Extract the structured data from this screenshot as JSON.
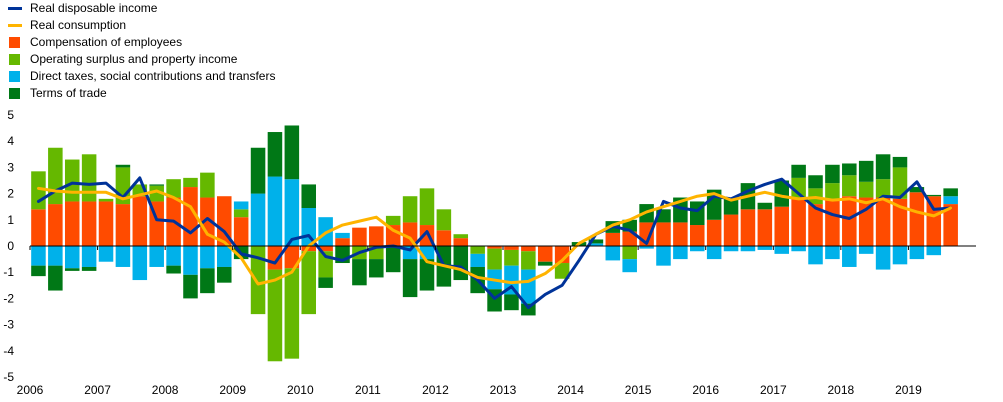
{
  "legend": [
    {
      "label": "Real disposable income",
      "kind": "line",
      "color": "#003399"
    },
    {
      "label": "Real consumption",
      "kind": "line",
      "color": "#ffb400"
    },
    {
      "label": "Compensation of employees",
      "kind": "bar",
      "color": "#ff4b00"
    },
    {
      "label": "Operating surplus and property income",
      "kind": "bar",
      "color": "#65b800"
    },
    {
      "label": "Direct taxes, social contributions and transfers",
      "kind": "bar",
      "color": "#00b1ea"
    },
    {
      "label": "Terms of trade",
      "kind": "bar",
      "color": "#007816"
    }
  ],
  "chart_data": {
    "type": "bar",
    "stacked": true,
    "ylim": [
      -5,
      5
    ],
    "y_ticks": [
      -5,
      -4,
      -3,
      -2,
      -1,
      0,
      1,
      2,
      3,
      4,
      5
    ],
    "x_tick_labels": [
      "2006",
      "2007",
      "2008",
      "2009",
      "2010",
      "2011",
      "2012",
      "2013",
      "2014",
      "2015",
      "2016",
      "2017",
      "2018",
      "2019"
    ],
    "grid": "none",
    "legend_position": "top-left",
    "categories": [
      "2006Q1",
      "2006Q2",
      "2006Q3",
      "2006Q4",
      "2007Q1",
      "2007Q2",
      "2007Q3",
      "2007Q4",
      "2008Q1",
      "2008Q2",
      "2008Q3",
      "2008Q4",
      "2009Q1",
      "2009Q2",
      "2009Q3",
      "2009Q4",
      "2010Q1",
      "2010Q2",
      "2010Q3",
      "2010Q4",
      "2011Q1",
      "2011Q2",
      "2011Q3",
      "2011Q4",
      "2012Q1",
      "2012Q2",
      "2012Q3",
      "2012Q4",
      "2013Q1",
      "2013Q2",
      "2013Q3",
      "2013Q4",
      "2014Q1",
      "2014Q2",
      "2014Q3",
      "2014Q4",
      "2015Q1",
      "2015Q2",
      "2015Q3",
      "2015Q4",
      "2016Q1",
      "2016Q2",
      "2016Q3",
      "2016Q4",
      "2017Q1",
      "2017Q2",
      "2017Q3",
      "2017Q4",
      "2018Q1",
      "2018Q2",
      "2018Q3",
      "2018Q4",
      "2019Q1",
      "2019Q2",
      "2019Q3"
    ],
    "series": [
      {
        "name": "Compensation of employees",
        "kind": "bar",
        "color": "#ff4b00",
        "values": [
          1.4,
          1.6,
          1.7,
          1.7,
          1.7,
          1.6,
          1.9,
          1.7,
          1.85,
          2.25,
          1.85,
          1.9,
          1.1,
          0.0,
          -0.9,
          -0.85,
          -0.2,
          -0.2,
          0.3,
          0.7,
          0.75,
          0.8,
          0.9,
          0.8,
          0.6,
          0.3,
          0.0,
          -0.1,
          -0.15,
          -0.2,
          -0.6,
          -0.65,
          0.0,
          0.0,
          0.5,
          0.55,
          0.9,
          0.9,
          0.9,
          0.8,
          1.0,
          1.2,
          1.4,
          1.4,
          1.5,
          1.8,
          1.6,
          1.8,
          1.9,
          1.85,
          1.85,
          1.8,
          2.05,
          1.9,
          1.6
        ]
      },
      {
        "name": "Operating surplus and property income",
        "kind": "bar",
        "color": "#65b800",
        "values": [
          1.45,
          2.15,
          1.6,
          1.8,
          0.1,
          1.4,
          0.45,
          0.6,
          0.7,
          0.35,
          0.95,
          0.0,
          0.3,
          -2.6,
          -3.5,
          -3.45,
          -2.4,
          -1.0,
          0.0,
          -0.5,
          -0.5,
          0.35,
          1.0,
          1.4,
          0.8,
          0.15,
          -0.3,
          -0.8,
          -0.6,
          -0.7,
          0.0,
          -0.6,
          0.0,
          0.0,
          0.0,
          -0.5,
          0.0,
          0.0,
          0.0,
          0.0,
          0.0,
          0.0,
          0.0,
          0.0,
          0.0,
          0.8,
          0.6,
          0.6,
          0.8,
          0.6,
          0.7,
          1.2,
          0.0,
          0.0,
          0.0
        ]
      },
      {
        "name": "Direct taxes, social contributions and transfers",
        "kind": "bar",
        "color": "#00b1ea",
        "values": [
          -0.75,
          -0.75,
          -0.85,
          -0.8,
          -0.6,
          -0.8,
          -1.3,
          -0.8,
          -0.75,
          -1.1,
          -0.85,
          -0.8,
          0.3,
          2.0,
          2.65,
          2.55,
          1.45,
          1.1,
          0.2,
          0.0,
          0.0,
          0.0,
          -0.5,
          -0.5,
          0.0,
          0.0,
          -0.5,
          -0.75,
          -1.1,
          -1.3,
          0.0,
          0.0,
          0.0,
          0.1,
          -0.55,
          -0.5,
          -0.1,
          -0.75,
          -0.5,
          -0.2,
          -0.5,
          -0.2,
          -0.2,
          -0.15,
          -0.3,
          -0.2,
          -0.7,
          -0.5,
          -0.8,
          -0.3,
          -0.9,
          -0.7,
          -0.5,
          -0.35,
          0.3
        ]
      },
      {
        "name": "Terms of trade",
        "kind": "bar",
        "color": "#007816",
        "values": [
          -0.4,
          -0.95,
          -0.1,
          -0.15,
          0.0,
          0.1,
          0.0,
          0.05,
          -0.3,
          -0.9,
          -0.95,
          -0.6,
          -0.5,
          1.75,
          1.7,
          2.05,
          0.9,
          -0.4,
          -0.65,
          -1.0,
          -0.7,
          -1.0,
          -1.45,
          -1.2,
          -1.55,
          -1.3,
          -1.0,
          -0.85,
          -0.6,
          -0.45,
          -0.15,
          0.0,
          0.15,
          0.15,
          0.45,
          0.45,
          0.7,
          0.5,
          0.95,
          0.9,
          1.15,
          0.6,
          1.0,
          0.25,
          1.0,
          0.5,
          0.5,
          0.7,
          0.45,
          0.8,
          0.95,
          0.4,
          0.2,
          0.05,
          0.3
        ]
      },
      {
        "name": "Real disposable income",
        "kind": "line",
        "color": "#003399",
        "values": [
          1.7,
          2.1,
          2.4,
          2.35,
          2.4,
          1.85,
          2.6,
          1.0,
          0.95,
          0.5,
          1.05,
          0.55,
          -0.3,
          -0.45,
          -0.65,
          0.25,
          0.4,
          -0.4,
          -0.55,
          -0.25,
          -0.05,
          0.0,
          -0.15,
          0.55,
          -0.75,
          -0.8,
          -1.3,
          -2.0,
          -1.55,
          -2.35,
          -1.85,
          -1.5,
          -0.55,
          0.45,
          0.75,
          0.6,
          0.1,
          1.7,
          1.45,
          1.35,
          1.9,
          1.8,
          2.1,
          2.35,
          2.55,
          2.0,
          1.45,
          1.2,
          1.05,
          1.4,
          1.9,
          1.85,
          2.45,
          1.4,
          1.45
        ]
      },
      {
        "name": "Real consumption",
        "kind": "line",
        "color": "#ffb400",
        "values": [
          2.2,
          2.1,
          2.05,
          2.05,
          2.05,
          1.8,
          1.95,
          2.1,
          1.85,
          1.5,
          0.45,
          0.15,
          -0.45,
          -1.45,
          -1.3,
          -1.0,
          0.0,
          0.5,
          0.8,
          0.95,
          1.1,
          0.6,
          0.3,
          -0.6,
          -0.75,
          -0.9,
          -1.2,
          -1.3,
          -1.4,
          -1.35,
          -1.05,
          -0.55,
          0.1,
          0.45,
          0.8,
          1.0,
          1.3,
          1.5,
          1.7,
          1.9,
          2.0,
          1.75,
          1.9,
          2.05,
          1.9,
          1.8,
          1.85,
          1.75,
          1.8,
          1.65,
          1.8,
          1.5,
          1.3,
          1.15,
          1.45
        ]
      }
    ]
  }
}
